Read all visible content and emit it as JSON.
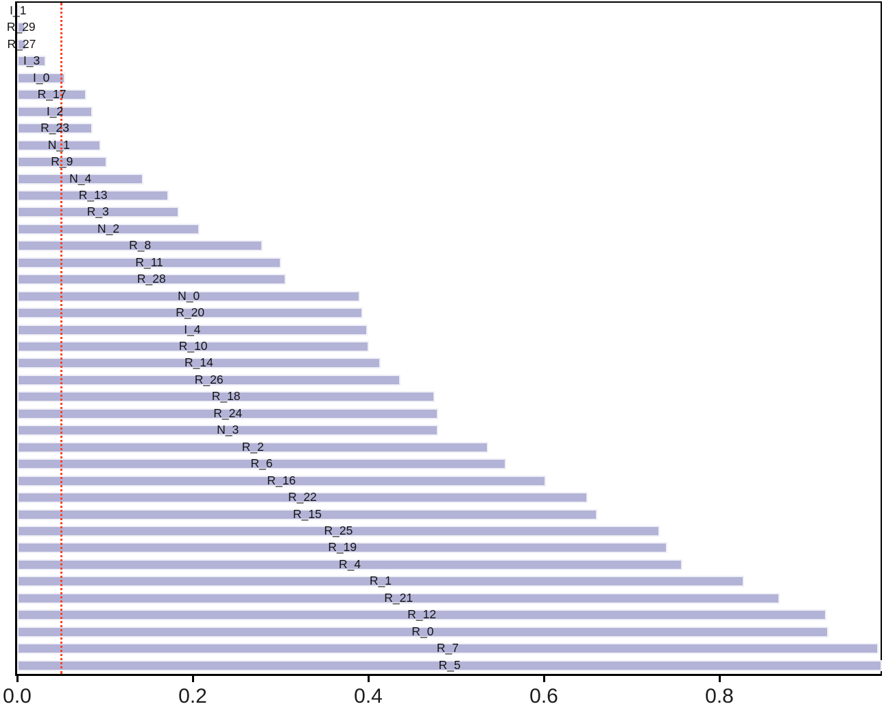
{
  "chart_data": {
    "type": "bar",
    "orientation": "horizontal",
    "title": "",
    "xlabel": "",
    "ylabel": "",
    "categories": [
      "I_1",
      "R_29",
      "R_27",
      "I_3",
      "I_0",
      "R_17",
      "I_2",
      "R_23",
      "N_1",
      "R_9",
      "N_4",
      "R_13",
      "R_3",
      "N_2",
      "R_8",
      "R_11",
      "R_28",
      "N_0",
      "R_20",
      "I_4",
      "R_10",
      "R_14",
      "R_26",
      "R_18",
      "R_24",
      "N_3",
      "R_2",
      "R_6",
      "R_16",
      "R_22",
      "R_15",
      "R_25",
      "R_19",
      "R_4",
      "R_1",
      "R_21",
      "R_12",
      "R_0",
      "R_7",
      "R_5"
    ],
    "values": [
      0.002,
      0.009,
      0.01,
      0.033,
      0.055,
      0.079,
      0.086,
      0.086,
      0.095,
      0.102,
      0.144,
      0.173,
      0.184,
      0.208,
      0.28,
      0.301,
      0.306,
      0.391,
      0.394,
      0.399,
      0.401,
      0.414,
      0.437,
      0.476,
      0.48,
      0.48,
      0.537,
      0.557,
      0.602,
      0.65,
      0.661,
      0.732,
      0.741,
      0.758,
      0.828,
      0.869,
      0.922,
      0.924,
      0.981,
      0.987
    ],
    "x_ticks": [
      0.0,
      0.2,
      0.4,
      0.6,
      0.8
    ],
    "x_tick_labels": [
      "0.0",
      "0.2",
      "0.4",
      "0.6",
      "0.8"
    ],
    "xlim": [
      0.0,
      0.9875
    ],
    "grid": false,
    "legend": null,
    "bar_color": "#b3b3d7",
    "bar_edge_color": "#efeff7",
    "threshold_line": {
      "x": 0.05,
      "style": "dotted",
      "color": "#fb421f"
    },
    "bar_labels_position": "centered-on-bar"
  }
}
